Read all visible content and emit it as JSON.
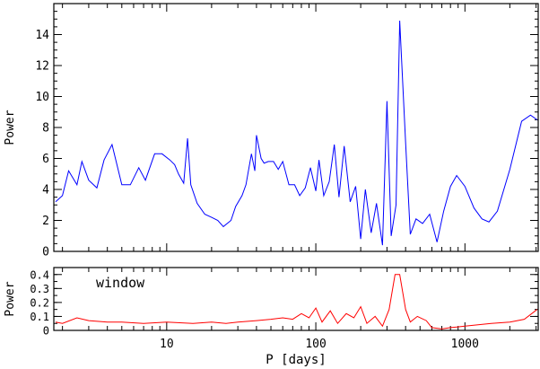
{
  "chart_data": [
    {
      "type": "line",
      "ylabel": "Power",
      "xlabel": "P [days]",
      "xscale": "log",
      "xlim": [
        1.75,
        3100
      ],
      "ylim": [
        0,
        16
      ],
      "yticks": [
        0,
        2,
        4,
        6,
        8,
        10,
        12,
        14
      ],
      "ytick_labels": [
        "0",
        "2",
        "4",
        "6",
        "8",
        "10",
        "12",
        "14"
      ],
      "series": [
        {
          "color": "#0000ff",
          "points": [
            [
              1.8,
              3.2
            ],
            [
              2.0,
              3.6
            ],
            [
              2.2,
              5.2
            ],
            [
              2.5,
              4.3
            ],
            [
              2.7,
              5.8
            ],
            [
              3.0,
              4.6
            ],
            [
              3.4,
              4.1
            ],
            [
              3.8,
              5.9
            ],
            [
              4.3,
              6.9
            ],
            [
              5.0,
              4.3
            ],
            [
              5.7,
              4.3
            ],
            [
              6.5,
              5.4
            ],
            [
              7.2,
              4.6
            ],
            [
              8.3,
              6.3
            ],
            [
              9.3,
              6.3
            ],
            [
              10.5,
              5.9
            ],
            [
              11.3,
              5.6
            ],
            [
              12.0,
              5.0
            ],
            [
              13.0,
              4.4
            ],
            [
              13.8,
              7.3
            ],
            [
              14.5,
              4.3
            ],
            [
              16.0,
              3.1
            ],
            [
              18.0,
              2.4
            ],
            [
              20.0,
              2.2
            ],
            [
              22.0,
              2.0
            ],
            [
              24.0,
              1.6
            ],
            [
              27.0,
              2.0
            ],
            [
              29.0,
              2.9
            ],
            [
              32.0,
              3.6
            ],
            [
              34.0,
              4.3
            ],
            [
              37.0,
              6.3
            ],
            [
              39.0,
              5.2
            ],
            [
              40.0,
              7.5
            ],
            [
              43.0,
              6.0
            ],
            [
              45.0,
              5.7
            ],
            [
              48.0,
              5.8
            ],
            [
              52.0,
              5.8
            ],
            [
              56.0,
              5.3
            ],
            [
              60.0,
              5.8
            ],
            [
              66.0,
              4.3
            ],
            [
              72.0,
              4.3
            ],
            [
              78.0,
              3.6
            ],
            [
              85.0,
              4.1
            ],
            [
              92.0,
              5.4
            ],
            [
              100.0,
              3.9
            ],
            [
              105.0,
              5.9
            ],
            [
              113.0,
              3.6
            ],
            [
              123.0,
              4.5
            ],
            [
              133.0,
              6.9
            ],
            [
              143.0,
              3.5
            ],
            [
              155.0,
              6.8
            ],
            [
              170.0,
              3.2
            ],
            [
              185.0,
              4.2
            ],
            [
              200.0,
              0.8
            ],
            [
              215.0,
              4.0
            ],
            [
              235.0,
              1.2
            ],
            [
              255.0,
              3.1
            ],
            [
              280.0,
              0.4
            ],
            [
              300.0,
              9.7
            ],
            [
              320.0,
              1.0
            ],
            [
              345.0,
              3.0
            ],
            [
              365.0,
              14.9
            ],
            [
              400.0,
              7.0
            ],
            [
              430.0,
              1.1
            ],
            [
              470.0,
              2.1
            ],
            [
              520.0,
              1.8
            ],
            [
              580.0,
              2.4
            ],
            [
              650.0,
              0.6
            ],
            [
              720.0,
              2.6
            ],
            [
              800.0,
              4.2
            ],
            [
              880.0,
              4.9
            ],
            [
              1000.0,
              4.2
            ],
            [
              1150.0,
              2.8
            ],
            [
              1300.0,
              2.1
            ],
            [
              1450.0,
              1.9
            ],
            [
              1650.0,
              2.6
            ],
            [
              2000.0,
              5.3
            ],
            [
              2400.0,
              8.4
            ],
            [
              2750.0,
              8.8
            ],
            [
              3050.0,
              8.5
            ]
          ]
        }
      ]
    },
    {
      "type": "line",
      "ylabel": "Power",
      "xlabel": "P [days]",
      "xscale": "log",
      "xlim": [
        1.75,
        3100
      ],
      "ylim": [
        0,
        0.45
      ],
      "xticks": [
        10,
        100,
        1000
      ],
      "xtick_labels": [
        "10",
        "100",
        "1000"
      ],
      "yticks": [
        0,
        0.1,
        0.2,
        0.3,
        0.4
      ],
      "ytick_labels": [
        "0",
        "0.1",
        "0.2",
        "0.3",
        "0.4"
      ],
      "annotation": "window",
      "series": [
        {
          "color": "#ff0000",
          "points": [
            [
              1.8,
              0.06
            ],
            [
              2.0,
              0.05
            ],
            [
              2.5,
              0.09
            ],
            [
              3.0,
              0.07
            ],
            [
              4.0,
              0.06
            ],
            [
              5.0,
              0.06
            ],
            [
              7.0,
              0.05
            ],
            [
              10.0,
              0.06
            ],
            [
              15.0,
              0.05
            ],
            [
              20.0,
              0.06
            ],
            [
              25.0,
              0.05
            ],
            [
              30.0,
              0.06
            ],
            [
              40.0,
              0.07
            ],
            [
              50.0,
              0.08
            ],
            [
              60.0,
              0.09
            ],
            [
              70.0,
              0.08
            ],
            [
              80.0,
              0.12
            ],
            [
              90.0,
              0.09
            ],
            [
              100.0,
              0.16
            ],
            [
              110.0,
              0.06
            ],
            [
              125.0,
              0.14
            ],
            [
              140.0,
              0.05
            ],
            [
              160.0,
              0.12
            ],
            [
              180.0,
              0.09
            ],
            [
              200.0,
              0.17
            ],
            [
              220.0,
              0.05
            ],
            [
              250.0,
              0.1
            ],
            [
              280.0,
              0.03
            ],
            [
              310.0,
              0.15
            ],
            [
              340.0,
              0.4
            ],
            [
              365.0,
              0.4
            ],
            [
              400.0,
              0.15
            ],
            [
              430.0,
              0.06
            ],
            [
              480.0,
              0.1
            ],
            [
              550.0,
              0.07
            ],
            [
              600.0,
              0.02
            ],
            [
              700.0,
              0.01
            ],
            [
              800.0,
              0.02
            ],
            [
              1000.0,
              0.03
            ],
            [
              1500.0,
              0.05
            ],
            [
              2000.0,
              0.06
            ],
            [
              2500.0,
              0.08
            ],
            [
              3050.0,
              0.15
            ]
          ]
        }
      ]
    }
  ]
}
